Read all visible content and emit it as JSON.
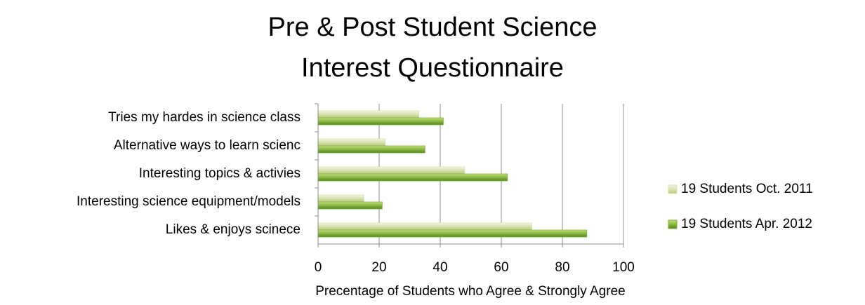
{
  "chart_data": {
    "type": "bar",
    "orientation": "horizontal",
    "title": "Pre & Post Student Science Interest Questionnaire",
    "categories": [
      "Tries my hardes in science class",
      "Alternative ways to learn scienc",
      "Interesting topics & activies",
      "Interesting science equipment/models",
      "Likes & enjoys scinece"
    ],
    "series": [
      {
        "name": "19 Students Oct. 2011",
        "color": "#d7e4a9",
        "values": [
          33,
          22,
          48,
          15,
          70
        ]
      },
      {
        "name": "19 Students Apr. 2012",
        "color": "#7fb034",
        "values": [
          41,
          35,
          62,
          21,
          88
        ]
      }
    ],
    "xlabel": "Precentage of Students who Agree & Strongly Agree",
    "xlim": [
      0,
      100
    ],
    "xticks": [
      0,
      20,
      40,
      60,
      80,
      100
    ],
    "grid": true,
    "legend": "right"
  }
}
